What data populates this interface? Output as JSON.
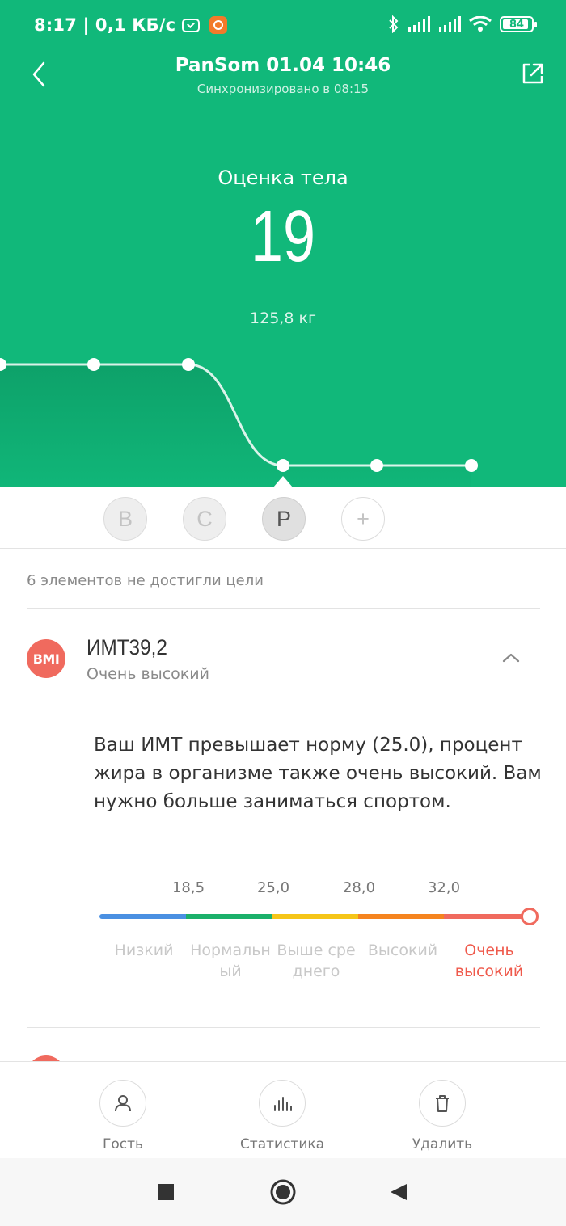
{
  "status_bar": {
    "time_speed": "8:17 | 0,1 КБ/с",
    "battery": "84",
    "icons": [
      "check-icon",
      "mi-app-icon",
      "bluetooth-icon",
      "signal-icon",
      "signal-icon",
      "wifi-icon",
      "battery-icon"
    ]
  },
  "header": {
    "title": "PanSom 01.04 10:46",
    "subtitle": "Синхронизировано в 08:15",
    "back_icon": "chevron-left-icon",
    "share_icon": "share-icon"
  },
  "score": {
    "label": "Оценка тела",
    "value": "19",
    "weight": "125,8  кг"
  },
  "trend": {
    "points": [
      1,
      1,
      1,
      0,
      0,
      0
    ],
    "selected_index": 3
  },
  "modes": [
    {
      "label": "B",
      "active": false
    },
    {
      "label": "C",
      "active": false
    },
    {
      "label": "P",
      "active": true
    },
    {
      "label": "+",
      "active": false
    }
  ],
  "notice": "6 элементов не достигли цели",
  "bmi": {
    "icon_text": "BMI",
    "title": "ИМТ39,2",
    "status": "Очень высокий",
    "description": "Ваш ИМТ превышает норму (25.0), процент жира в организме также очень высокий. Вам нужно больше заниматься спортом.",
    "value": 39.2,
    "thresholds": [
      "18,5",
      "25,0",
      "28,0",
      "32,0"
    ],
    "ranges": [
      {
        "label": "Низкий",
        "color": "#4a90e2"
      },
      {
        "label": "Нормальный",
        "color": "#1bb06a"
      },
      {
        "label": "Выше среднего",
        "color": "#f5c518"
      },
      {
        "label": "Высокий",
        "color": "#f5841f"
      },
      {
        "label": "Очень высокий",
        "color": "#f06a5e"
      }
    ],
    "current_range_index": 4
  },
  "actions": [
    {
      "label": "Гость",
      "icon": "person-icon"
    },
    {
      "label": "Статистика",
      "icon": "bar-chart-icon"
    },
    {
      "label": "Удалить",
      "icon": "trash-icon"
    }
  ],
  "colors": {
    "accent": "#11b87a",
    "warning": "#f06a5e"
  }
}
